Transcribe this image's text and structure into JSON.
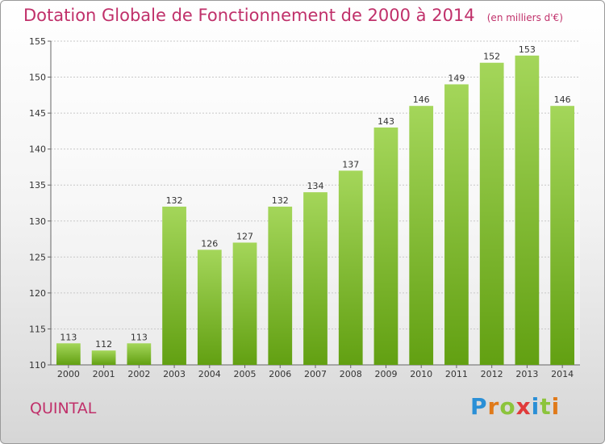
{
  "header": {
    "title": "Dotation Globale de Fonctionnement de 2000 à 2014",
    "unit": "(en milliers d'€)"
  },
  "footer": {
    "location": "QUINTAL",
    "logo_text": "Proxiti",
    "logo_letters": [
      "P",
      "r",
      "o",
      "x",
      "i",
      "t",
      "i"
    ]
  },
  "colors": {
    "title": "#c0306a",
    "bar_top": "#a4d65a",
    "bar_bottom": "#62a012"
  },
  "chart_data": {
    "type": "bar",
    "categories": [
      "2000",
      "2001",
      "2002",
      "2003",
      "2004",
      "2005",
      "2006",
      "2007",
      "2008",
      "2009",
      "2010",
      "2011",
      "2012",
      "2013",
      "2014"
    ],
    "values": [
      113,
      112,
      113,
      132,
      126,
      127,
      132,
      134,
      137,
      143,
      146,
      149,
      152,
      153,
      146
    ],
    "title": "Dotation Globale de Fonctionnement de 2000 à 2014",
    "subtitle": "(en milliers d'€)",
    "xlabel": "",
    "ylabel": "",
    "ylim": [
      110,
      155
    ],
    "yticks": [
      110,
      115,
      120,
      125,
      130,
      135,
      140,
      145,
      150,
      155
    ],
    "grid": true,
    "legend": "none"
  }
}
